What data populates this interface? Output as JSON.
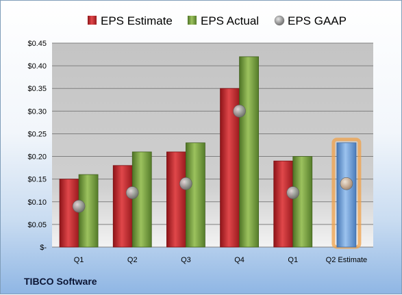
{
  "company": "TIBCO Software",
  "chart_data": {
    "type": "bar",
    "categories": [
      "Q1",
      "Q2",
      "Q3",
      "Q4",
      "Q1",
      "Q2 Estimate"
    ],
    "series": [
      {
        "name": "EPS Estimate",
        "values": [
          0.15,
          0.18,
          0.21,
          0.35,
          0.19,
          null
        ],
        "color": "#c0262b"
      },
      {
        "name": "EPS Actual",
        "values": [
          0.16,
          0.21,
          0.23,
          0.42,
          0.2,
          0.23
        ],
        "color": "#77a03f"
      },
      {
        "name": "EPS GAAP",
        "values": [
          0.09,
          0.12,
          0.14,
          0.3,
          0.12,
          0.14
        ],
        "color": "#999999",
        "kind": "marker"
      }
    ],
    "estimate_bar_color": "#6c9fd6",
    "estimate_highlight_color": "#f0a24a",
    "ylim": [
      0,
      0.45
    ],
    "yticks": [
      {
        "value": 0.45,
        "label": "$0.45"
      },
      {
        "value": 0.4,
        "label": "$0.40"
      },
      {
        "value": 0.35,
        "label": "$0.35"
      },
      {
        "value": 0.3,
        "label": "$0.30"
      },
      {
        "value": 0.25,
        "label": "$0.25"
      },
      {
        "value": 0.2,
        "label": "$0.20"
      },
      {
        "value": 0.15,
        "label": "$0.15"
      },
      {
        "value": 0.1,
        "label": "$0.10"
      },
      {
        "value": 0.05,
        "label": "$0.05"
      },
      {
        "value": 0,
        "label": "$-"
      }
    ],
    "legend_position": "top",
    "grid": true
  }
}
